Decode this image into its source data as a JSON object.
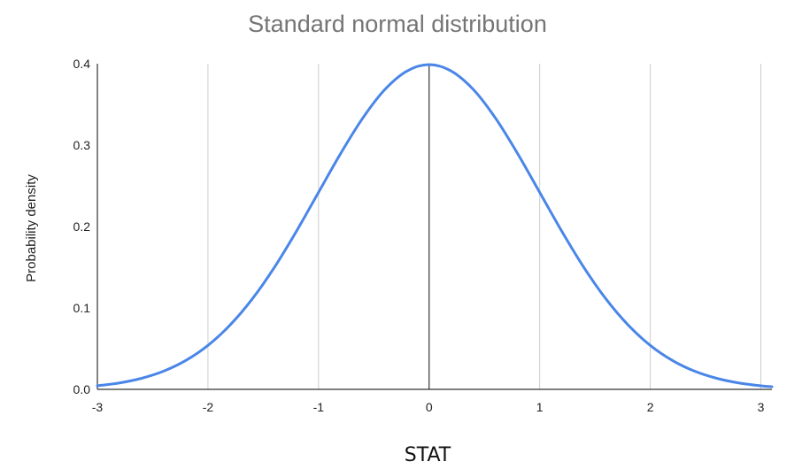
{
  "chart_data": {
    "type": "line",
    "title": "Standard normal distribution",
    "xlabel": "STAT",
    "ylabel": "Probability density",
    "xlim": [
      -3,
      3.1
    ],
    "ylim": [
      0,
      0.4
    ],
    "x_ticks": [
      -3,
      -2,
      -1,
      0,
      1,
      2,
      3
    ],
    "x_tick_labels": [
      "-3",
      "-2",
      "-1",
      "0",
      "1",
      "2",
      "3"
    ],
    "y_ticks": [
      0,
      0.1,
      0.2,
      0.3,
      0.4
    ],
    "y_tick_labels": [
      "0.0",
      "0.1",
      "0.2",
      "0.3",
      "0.4"
    ],
    "grid": "vertical",
    "line_color": "#4a86e8",
    "series": [
      {
        "x": [
          -3.0,
          -2.8,
          -2.6,
          -2.4,
          -2.2,
          -2.0,
          -1.8,
          -1.6,
          -1.4,
          -1.2,
          -1.0,
          -0.8,
          -0.6,
          -0.4,
          -0.2,
          0.0,
          0.2,
          0.4,
          0.6,
          0.8,
          1.0,
          1.2,
          1.4,
          1.6,
          1.8,
          2.0,
          2.2,
          2.4,
          2.6,
          2.8,
          3.0,
          3.1
        ],
        "y": [
          0.0044,
          0.0079,
          0.0136,
          0.0224,
          0.0355,
          0.054,
          0.079,
          0.1109,
          0.1497,
          0.1942,
          0.242,
          0.2897,
          0.3332,
          0.3683,
          0.391,
          0.3989,
          0.391,
          0.3683,
          0.3332,
          0.2897,
          0.242,
          0.1942,
          0.1497,
          0.1109,
          0.079,
          0.054,
          0.0355,
          0.0224,
          0.0136,
          0.0079,
          0.0044,
          0.0033
        ]
      }
    ]
  }
}
